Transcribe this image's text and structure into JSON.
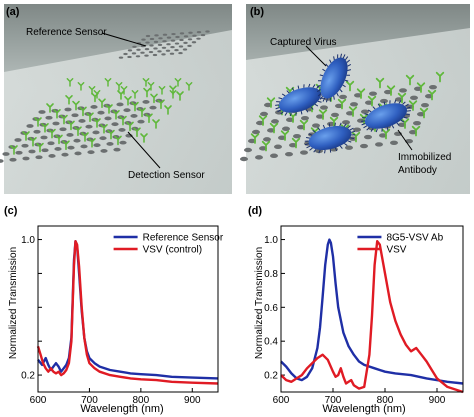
{
  "panels": {
    "a": {
      "label": "(a)",
      "reference_label": "Reference Sensor",
      "detection_label": "Detection Sensor"
    },
    "b": {
      "label": "(b)",
      "virus_label": "Captured Virus",
      "antibody_label_line1": "Immobilized",
      "antibody_label_line2": "Antibody"
    }
  },
  "colors": {
    "series_blue": "#1f2fa6",
    "series_red": "#e01b24",
    "chip": "#cfd6d4",
    "hole": "#6b6f70",
    "antibody": "#5fb83a",
    "virus": "#2f66c6"
  },
  "chart_data": [
    {
      "panel_label": "(c)",
      "type": "line",
      "xlabel": "Wavelength (nm)",
      "ylabel": "Normalized Transmission",
      "xlim": [
        600,
        950
      ],
      "ylim": [
        0.1,
        1.08
      ],
      "x_ticks": [
        600,
        700,
        800,
        900
      ],
      "y_ticks": [
        0.2,
        0.4,
        0.6,
        0.8,
        1.0
      ],
      "y_tick_labels": [
        "0.2",
        "",
        "",
        "",
        "1.0"
      ],
      "legend_position": "top-right",
      "series": [
        {
          "name": "Reference Sensor",
          "color": "#1f2fa6",
          "x": [
            600,
            608,
            615,
            620,
            625,
            630,
            635,
            640,
            645,
            650,
            655,
            660,
            665,
            670,
            673,
            676,
            680,
            685,
            690,
            695,
            700,
            710,
            720,
            740,
            760,
            780,
            800,
            830,
            860,
            900,
            950
          ],
          "y": [
            0.29,
            0.26,
            0.3,
            0.26,
            0.23,
            0.25,
            0.27,
            0.25,
            0.22,
            0.24,
            0.26,
            0.3,
            0.42,
            0.88,
            0.99,
            0.96,
            0.8,
            0.58,
            0.42,
            0.34,
            0.3,
            0.27,
            0.25,
            0.23,
            0.22,
            0.21,
            0.205,
            0.2,
            0.19,
            0.185,
            0.18
          ]
        },
        {
          "name": "VSV  (control)",
          "color": "#e01b24",
          "x": [
            600,
            605,
            610,
            615,
            620,
            625,
            630,
            635,
            640,
            645,
            650,
            655,
            660,
            665,
            670,
            673,
            676,
            680,
            685,
            690,
            695,
            700,
            710,
            720,
            740,
            760,
            780,
            800,
            830,
            860,
            900,
            950
          ],
          "y": [
            0.37,
            0.32,
            0.27,
            0.24,
            0.22,
            0.24,
            0.22,
            0.21,
            0.22,
            0.2,
            0.21,
            0.23,
            0.27,
            0.4,
            0.85,
            0.99,
            0.97,
            0.84,
            0.6,
            0.42,
            0.32,
            0.27,
            0.24,
            0.22,
            0.2,
            0.19,
            0.18,
            0.175,
            0.17,
            0.16,
            0.155,
            0.15
          ]
        }
      ]
    },
    {
      "panel_label": "(d)",
      "type": "line",
      "xlabel": "Wavelength (nm)",
      "ylabel": "Normalized Transmission",
      "xlim": [
        600,
        950
      ],
      "ylim": [
        0.1,
        1.08
      ],
      "x_ticks": [
        600,
        700,
        800,
        900
      ],
      "y_ticks": [
        0.2,
        0.4,
        0.6,
        0.8,
        1.0
      ],
      "y_tick_labels": [
        "0.2",
        "0.4",
        "0.6",
        "0.8",
        "1.0"
      ],
      "legend_position": "top-right",
      "series": [
        {
          "name": "8G5-VSV Ab",
          "color": "#1f2fa6",
          "x": [
            600,
            610,
            620,
            630,
            640,
            650,
            660,
            670,
            675,
            680,
            685,
            690,
            693,
            696,
            700,
            705,
            710,
            720,
            730,
            740,
            750,
            760,
            780,
            800,
            820,
            850,
            880,
            920,
            950
          ],
          "y": [
            0.28,
            0.25,
            0.21,
            0.18,
            0.17,
            0.19,
            0.24,
            0.36,
            0.48,
            0.66,
            0.85,
            0.97,
            1.0,
            0.98,
            0.9,
            0.74,
            0.6,
            0.45,
            0.37,
            0.32,
            0.28,
            0.26,
            0.24,
            0.22,
            0.21,
            0.2,
            0.18,
            0.16,
            0.15
          ]
        },
        {
          "name": "VSV",
          "color": "#e01b24",
          "x": [
            600,
            610,
            620,
            630,
            640,
            650,
            660,
            670,
            680,
            690,
            700,
            705,
            710,
            715,
            720,
            725,
            730,
            735,
            740,
            750,
            760,
            770,
            775,
            780,
            785,
            790,
            800,
            810,
            820,
            830,
            840,
            850,
            860,
            870,
            880,
            890,
            900,
            920,
            950
          ],
          "y": [
            0.2,
            0.17,
            0.16,
            0.18,
            0.2,
            0.24,
            0.27,
            0.3,
            0.32,
            0.29,
            0.22,
            0.19,
            0.2,
            0.24,
            0.19,
            0.15,
            0.16,
            0.17,
            0.14,
            0.12,
            0.13,
            0.32,
            0.55,
            0.85,
            0.99,
            0.97,
            0.8,
            0.63,
            0.52,
            0.44,
            0.38,
            0.34,
            0.36,
            0.32,
            0.28,
            0.23,
            0.18,
            0.13,
            0.1
          ]
        }
      ]
    }
  ]
}
